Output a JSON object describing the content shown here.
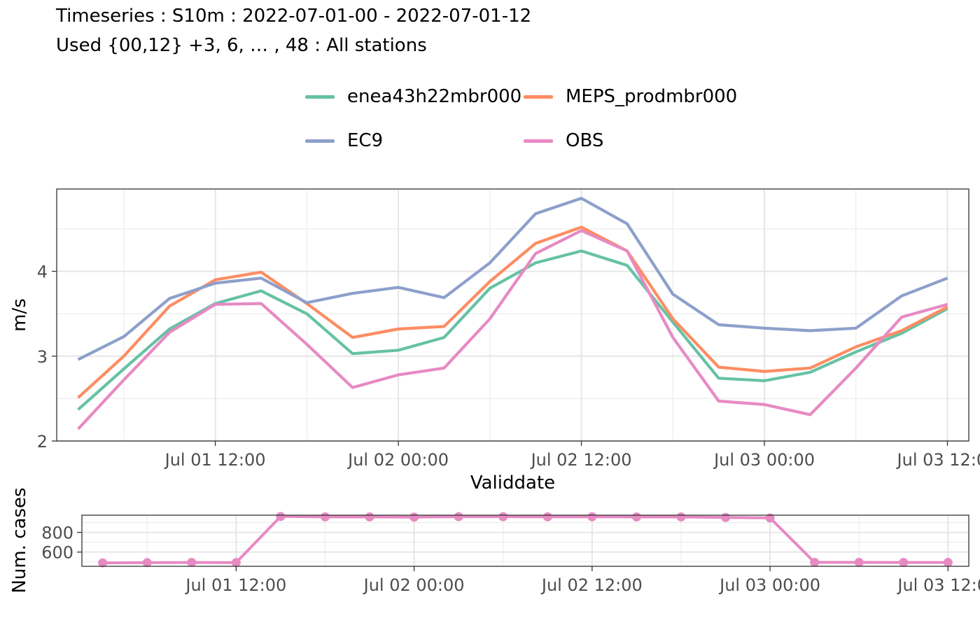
{
  "title": "Timeseries : S10m : 2022-07-01-00 - 2022-07-01-12",
  "subtitle": "Used {00,12} +3, 6, … , 48 : All stations",
  "chart_data": [
    {
      "type": "line",
      "xlabel": "Validdate",
      "ylabel": "m/s",
      "x": [
        "2022-07-01 03:00",
        "2022-07-01 06:00",
        "2022-07-01 09:00",
        "2022-07-01 12:00",
        "2022-07-01 15:00",
        "2022-07-01 18:00",
        "2022-07-01 21:00",
        "2022-07-02 00:00",
        "2022-07-02 03:00",
        "2022-07-02 06:00",
        "2022-07-02 09:00",
        "2022-07-02 12:00",
        "2022-07-02 15:00",
        "2022-07-02 18:00",
        "2022-07-02 21:00",
        "2022-07-03 00:00",
        "2022-07-03 03:00",
        "2022-07-03 06:00",
        "2022-07-03 09:00",
        "2022-07-03 12:00"
      ],
      "xlim": [
        "2022-07-01 01:36",
        "2022-07-03 13:24"
      ],
      "xticks": [
        "Jul 01 12:00",
        "Jul 02 00:00",
        "Jul 02 12:00",
        "Jul 03 00:00",
        "Jul 03 12:00"
      ],
      "xtick_values": [
        "2022-07-01 12:00",
        "2022-07-02 00:00",
        "2022-07-02 12:00",
        "2022-07-03 00:00",
        "2022-07-03 12:00"
      ],
      "ylim": [
        2,
        4.97
      ],
      "yticks": [
        2,
        3,
        4
      ],
      "grid": true,
      "legend_position": "top",
      "series": [
        {
          "name": "enea43h22mbr000",
          "color": "#66c2a5",
          "values": [
            2.37,
            2.85,
            3.32,
            3.62,
            3.77,
            3.5,
            3.03,
            3.07,
            3.22,
            3.8,
            4.1,
            4.24,
            4.07,
            3.4,
            2.74,
            2.71,
            2.81,
            3.05,
            3.27,
            3.56
          ]
        },
        {
          "name": "MEPS_prodmbr000",
          "color": "#fc8d62",
          "values": [
            2.51,
            3.0,
            3.59,
            3.9,
            3.99,
            3.62,
            3.22,
            3.32,
            3.35,
            3.88,
            4.33,
            4.52,
            4.24,
            3.44,
            2.87,
            2.82,
            2.86,
            3.11,
            3.3,
            3.58
          ]
        },
        {
          "name": "EC9",
          "color": "#8da0cb",
          "values": [
            2.96,
            3.23,
            3.68,
            3.86,
            3.92,
            3.63,
            3.74,
            3.81,
            3.69,
            4.1,
            4.68,
            4.86,
            4.56,
            3.73,
            3.37,
            3.33,
            3.3,
            3.33,
            3.71,
            3.92
          ]
        },
        {
          "name": "OBS",
          "color": "#e78ac3",
          "values": [
            2.14,
            2.72,
            3.28,
            3.61,
            3.62,
            3.14,
            2.63,
            2.78,
            2.86,
            3.44,
            4.21,
            4.48,
            4.24,
            3.22,
            2.47,
            2.43,
            2.31,
            2.86,
            3.46,
            3.61
          ]
        }
      ]
    },
    {
      "type": "line",
      "ylabel": "Num. cases",
      "xticks": [
        "Jul 01 12:00",
        "Jul 02 00:00",
        "Jul 02 12:00",
        "Jul 03 00:00",
        "Jul 03 12:00"
      ],
      "yticks": [
        600,
        800
      ],
      "ylim": [
        455,
        975
      ],
      "color": "#e78ac3",
      "values": [
        490,
        492,
        494,
        493,
        962,
        958,
        957,
        955,
        960,
        960,
        958,
        959,
        957,
        957,
        952,
        947,
        495,
        495,
        494,
        494
      ]
    }
  ]
}
